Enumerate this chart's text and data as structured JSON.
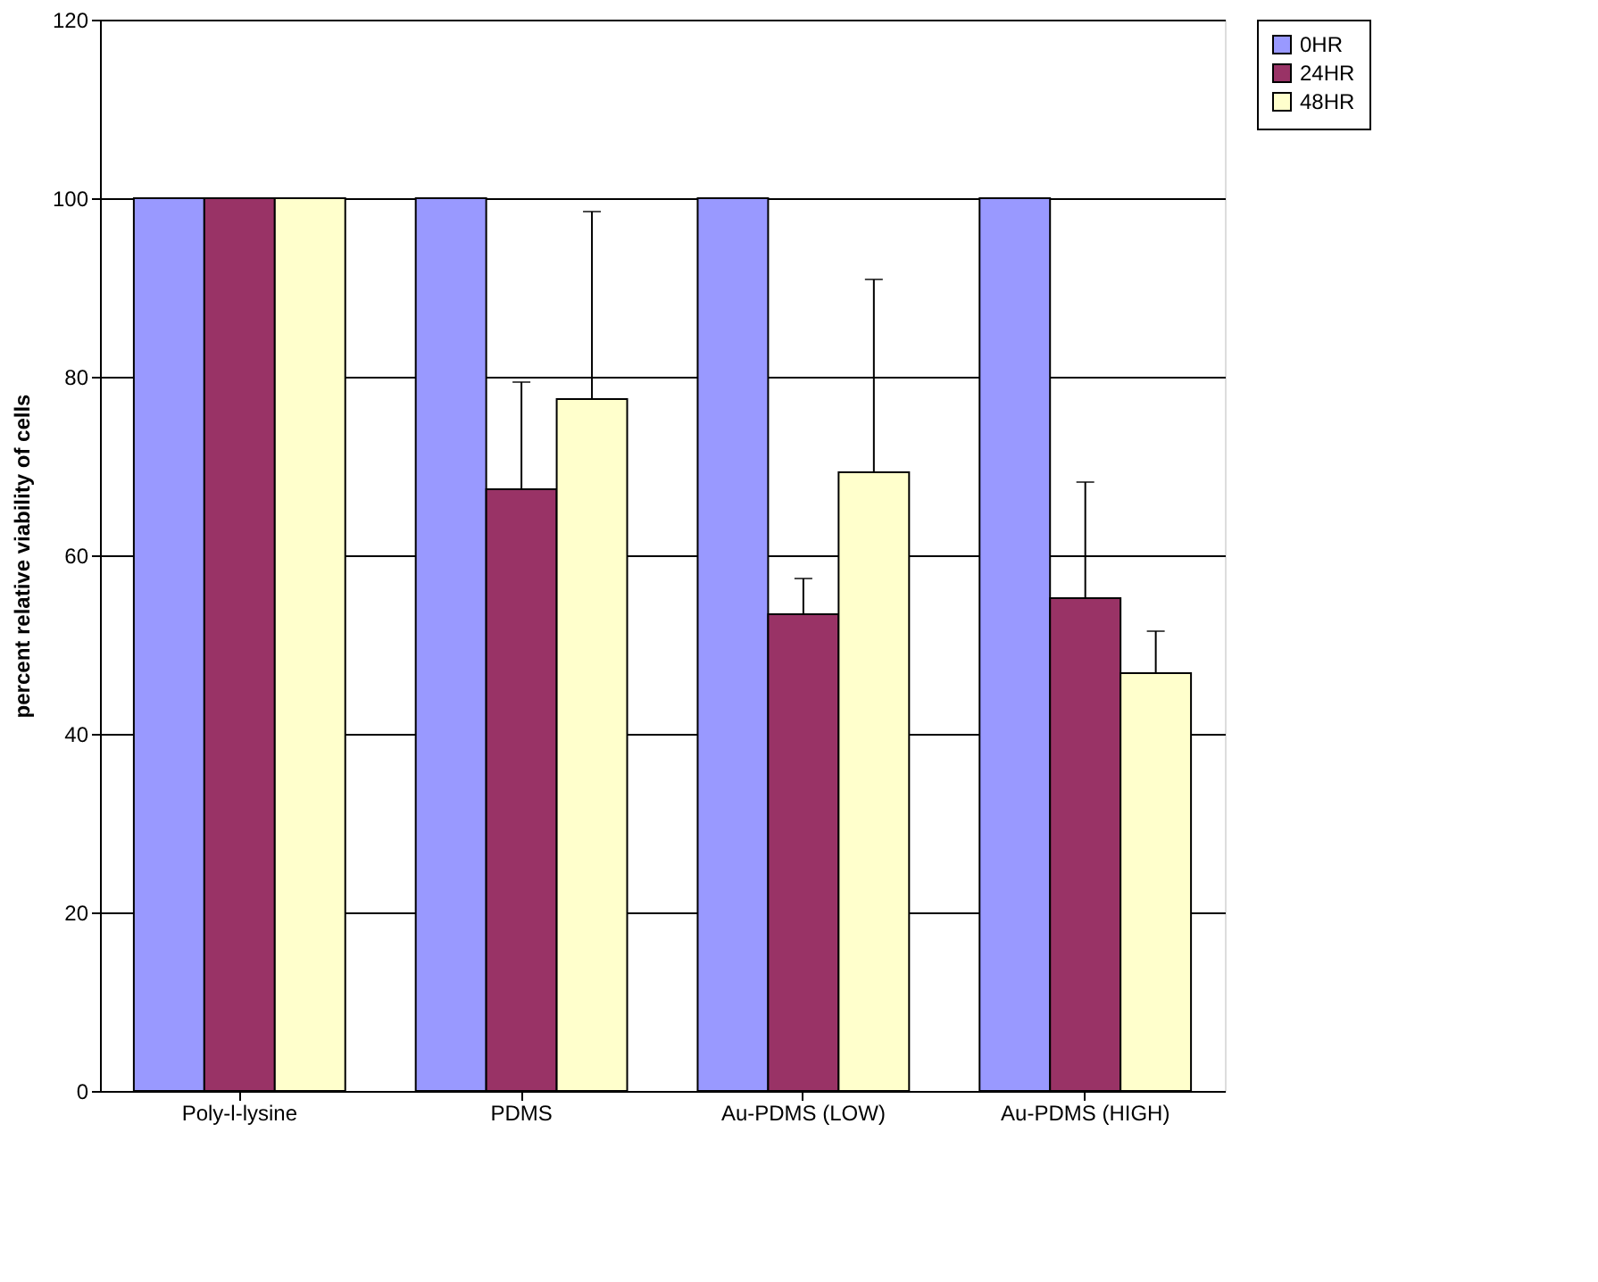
{
  "chart_data": {
    "type": "bar",
    "ylabel": "percent relative viability of cells",
    "categories": [
      "Poly-l-lysine",
      "PDMS",
      "Au-PDMS (LOW)",
      "Au-PDMS (HIGH)"
    ],
    "series": [
      {
        "name": "0HR",
        "color": "#9999ff",
        "values": [
          100,
          100,
          100,
          100
        ]
      },
      {
        "name": "24HR",
        "color": "#993366",
        "values": [
          100,
          67.4,
          53.4,
          55.2
        ],
        "errors": [
          null,
          [
            67.4,
            79.4
          ],
          [
            53.4,
            57.4
          ],
          [
            55.2,
            68.2
          ]
        ]
      },
      {
        "name": "48HR",
        "color": "#ffffcc",
        "values": [
          100,
          77.5,
          69.3,
          46.8
        ],
        "errors": [
          null,
          [
            77.5,
            98.5
          ],
          [
            69.3,
            90.9
          ],
          [
            46.8,
            51.5
          ]
        ]
      }
    ],
    "ylim": [
      0,
      120
    ],
    "yticks": [
      0,
      20,
      40,
      60,
      80,
      100,
      120
    ],
    "grid": "y",
    "legend": "right"
  }
}
